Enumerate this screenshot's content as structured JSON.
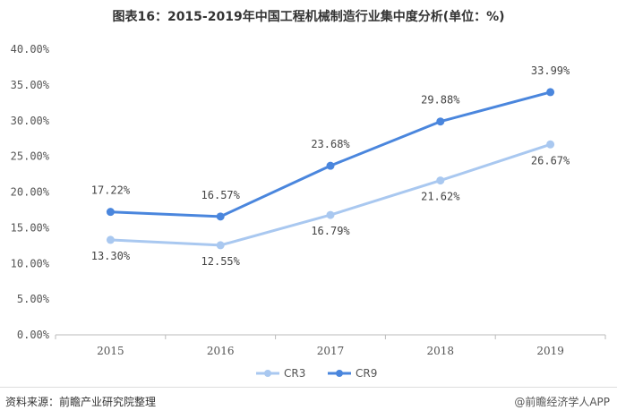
{
  "title": "图表16：2015-2019年中国工程机械制造行业集中度分析(单位：%)",
  "footer": {
    "source": "资料来源：前瞻产业研究院整理",
    "brand": "@前瞻经济学人APP"
  },
  "colors": {
    "cr3": "#a9c8f0",
    "cr9": "#4a86dd",
    "grid": "#e6e6e6",
    "axis": "#bbbbbb"
  },
  "chart_data": {
    "type": "line",
    "categories": [
      "2015",
      "2016",
      "2017",
      "2018",
      "2019"
    ],
    "y_ticks": [
      "0.00%",
      "5.00%",
      "10.00%",
      "15.00%",
      "20.00%",
      "25.00%",
      "30.00%",
      "35.00%",
      "40.00%"
    ],
    "ylim": [
      0,
      40
    ],
    "grid": false,
    "legend": "bottom-center",
    "series": [
      {
        "name": "CR3",
        "values": [
          13.3,
          12.55,
          16.79,
          21.62,
          26.67
        ],
        "labels": [
          "13.30%",
          "12.55%",
          "16.79%",
          "21.62%",
          "26.67%"
        ]
      },
      {
        "name": "CR9",
        "values": [
          17.22,
          16.57,
          23.68,
          29.88,
          33.99
        ],
        "labels": [
          "17.22%",
          "16.57%",
          "23.68%",
          "29.88%",
          "33.99%"
        ]
      }
    ]
  }
}
